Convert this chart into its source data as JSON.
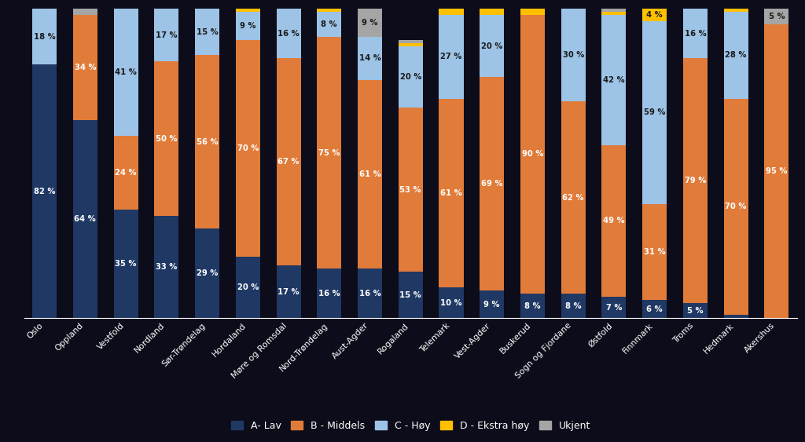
{
  "categories": [
    "Oslo",
    "Oppland",
    "Vestfold",
    "Nordland",
    "Sør-Trøndelag",
    "Hordaland",
    "Møre og Romsdal",
    "Nord-Trøndelag",
    "Aust-Agder",
    "Rogaland",
    "Telemark",
    "Vest-Agder",
    "Buskerud",
    "Sogn og Fjordane",
    "Østfold",
    "Finnmark",
    "Troms",
    "Hedmark",
    "Akershus"
  ],
  "A_lav": [
    82,
    64,
    35,
    33,
    29,
    20,
    17,
    16,
    16,
    15,
    10,
    9,
    8,
    8,
    7,
    6,
    5,
    1,
    0
  ],
  "B_middels": [
    0,
    34,
    24,
    50,
    56,
    70,
    67,
    75,
    61,
    53,
    61,
    69,
    90,
    62,
    49,
    31,
    79,
    70,
    95
  ],
  "C_høy": [
    18,
    0,
    41,
    17,
    15,
    9,
    16,
    8,
    14,
    20,
    27,
    20,
    0,
    30,
    42,
    59,
    16,
    28,
    0
  ],
  "D_ekstra_høy": [
    0,
    0,
    0,
    0,
    0,
    1,
    0,
    1,
    0,
    1,
    2,
    2,
    2,
    0,
    1,
    4,
    0,
    1,
    0
  ],
  "ukjent": [
    0,
    2,
    0,
    0,
    0,
    0,
    0,
    0,
    9,
    1,
    0,
    0,
    0,
    0,
    1,
    0,
    0,
    0,
    5
  ],
  "color_A": "#1f3864",
  "color_B": "#e07b39",
  "color_C": "#9dc3e6",
  "color_D": "#ffc000",
  "color_U": "#a5a5a5",
  "bg_color": "#0c0c1a",
  "legend_labels": [
    "A- Lav",
    "B - Middels",
    "C - Høy",
    "D - Ekstra høy",
    "Ukjent"
  ],
  "label_color_dark": "#1a1a1a",
  "label_color_light": "white",
  "bar_width": 0.6,
  "figsize": [
    10.24,
    5.63
  ],
  "dpi": 100
}
